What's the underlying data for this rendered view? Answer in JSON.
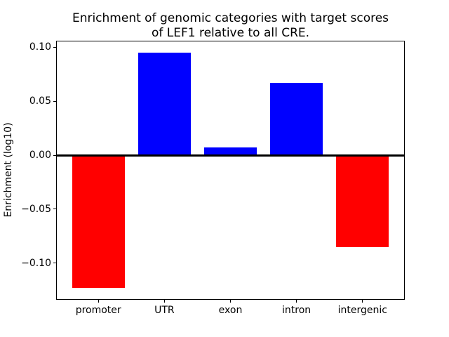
{
  "figure": {
    "title_line1": "Enrichment of genomic categories with target scores",
    "title_line2": "of LEF1 relative to all CRE."
  },
  "chart_data": {
    "type": "bar",
    "title": "Enrichment of genomic categories with target scores of LEF1 relative to all CRE.",
    "categories": [
      "promoter",
      "UTR",
      "exon",
      "intron",
      "intergenic"
    ],
    "values": [
      -0.123,
      0.095,
      0.007,
      0.067,
      -0.085
    ],
    "bar_colors": [
      "#ff0000",
      "#0000ff",
      "#0000ff",
      "#0000ff",
      "#ff0000"
    ],
    "positive_color": "#0000ff",
    "negative_color": "#ff0000",
    "xlabel": "",
    "ylabel": "Enrichment (log10)",
    "ylim": [
      -0.134,
      0.106
    ],
    "xlim": [
      -0.64,
      4.64
    ],
    "bar_width_frac": 0.8,
    "yticks": [
      0.1,
      0.05,
      0.0,
      -0.05,
      -0.1
    ],
    "ytick_labels": [
      "0.10",
      "0.05",
      "0.00",
      "−0.05",
      "−0.10"
    ],
    "grid": false,
    "legend": "none",
    "zero_line_value": 0.0,
    "axis_color": "#000000",
    "background_color": "#ffffff"
  }
}
